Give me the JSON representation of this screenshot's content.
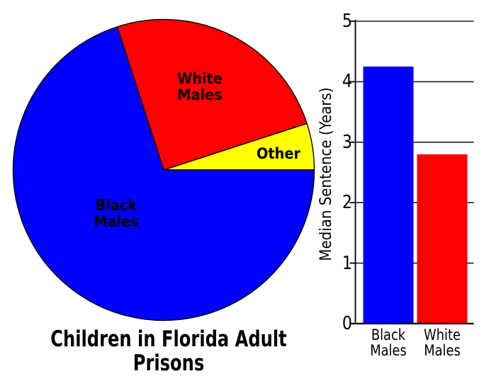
{
  "chart_data": [
    {
      "type": "pie",
      "title": "Children in Florida Adult Prisons",
      "labels": [
        "Other",
        "White Males",
        "Black Males"
      ],
      "values_percent": [
        5,
        25,
        70
      ],
      "colors": [
        "#ffff00",
        "#ff0000",
        "#0000ff"
      ],
      "start_angle_deg": 0,
      "direction": "counterclockwise",
      "slice_label_display": {
        "black": "Black\nMales",
        "white": "White\nMales",
        "other": "Other"
      },
      "legend": "labels-inside-slices"
    },
    {
      "type": "bar",
      "categories": [
        "Black Males",
        "White Males"
      ],
      "categories_display": [
        "Black\nMales",
        "White\nMales"
      ],
      "values": [
        4.25,
        2.8
      ],
      "colors": [
        "#0000ff",
        "#ff0000"
      ],
      "ylabel": "Median Sentence (Years)",
      "ylim": [
        0,
        5
      ],
      "yticks": [
        0,
        1,
        2,
        3,
        4,
        5
      ],
      "grid": true,
      "legend": "none"
    }
  ],
  "colors": {
    "black_males": "#0000ff",
    "white_males": "#ff0000",
    "other": "#ffff00",
    "axis": "#000000",
    "grid": "#1c1c1c",
    "background": "#ffffff"
  }
}
